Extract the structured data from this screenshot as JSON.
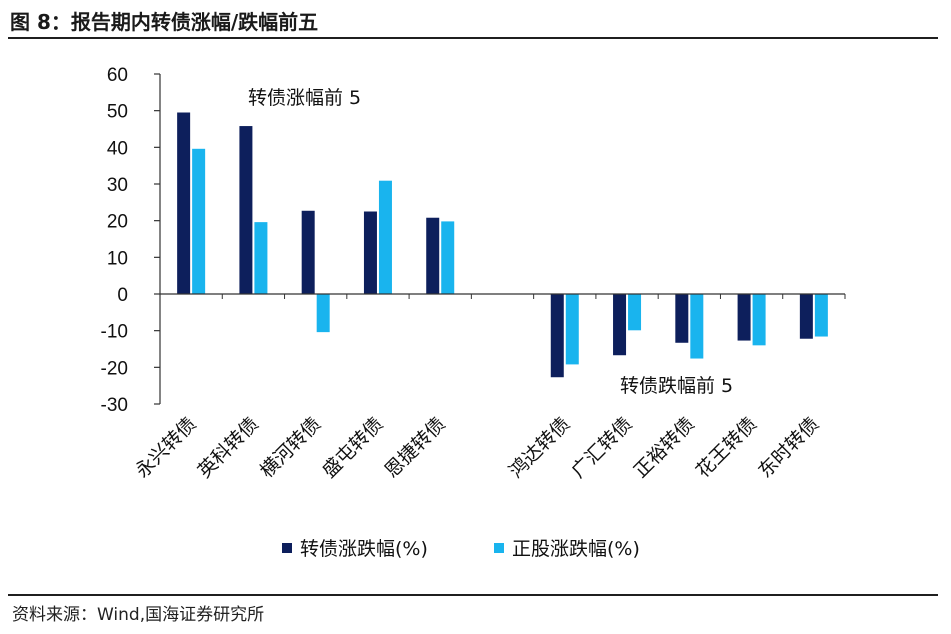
{
  "figure": {
    "title": "图 8：报告期内转债涨幅/跌幅前五",
    "source": "资料来源：Wind,国海证券研究所"
  },
  "colors": {
    "series1": "#0d1f5c",
    "series2": "#19b4ee"
  },
  "chart_data": {
    "type": "bar",
    "categories": [
      "永兴转债",
      "英科转债",
      "横河转债",
      "盛屯转债",
      "恩捷转债",
      "鸿达转债",
      "广汇转债",
      "正裕转债",
      "花王转债",
      "东时转债"
    ],
    "series": [
      {
        "name": "转债涨跌幅(%)",
        "values": [
          49.5,
          45.8,
          22.7,
          22.5,
          20.8,
          -22.7,
          -16.7,
          -13.3,
          -12.7,
          -12.2
        ]
      },
      {
        "name": "正股涨跌幅(%)",
        "values": [
          39.6,
          19.6,
          -10.4,
          30.9,
          19.8,
          -19.2,
          -9.9,
          -17.6,
          -14.0,
          -11.6
        ]
      }
    ],
    "yticks": [
      60,
      50,
      40,
      30,
      20,
      10,
      0,
      -10,
      -20,
      -30
    ],
    "ylim": [
      -30,
      60
    ],
    "annotations": [
      "转债涨幅前 5",
      "转债跌幅前 5"
    ],
    "legend_position": "bottom",
    "grid": false
  }
}
